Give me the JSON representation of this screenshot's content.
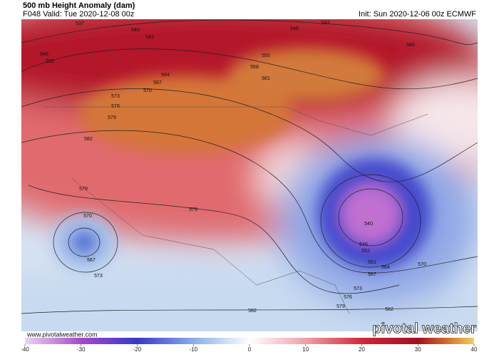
{
  "header": {
    "title": "500 mb Height Anomaly (dam)",
    "valid": "F048 Valid: Tue 2020-12-08 00z",
    "init": "Init: Sun 2020-12-06 00z ECMWF"
  },
  "contour_labels": [
    "537",
    "540",
    "543",
    "546",
    "549",
    "552",
    "555",
    "558",
    "561",
    "564",
    "567",
    "570",
    "573",
    "576",
    "579",
    "582",
    "543",
    "540",
    "579",
    "570",
    "567",
    "573",
    "579",
    "540",
    "546",
    "552",
    "561",
    "564",
    "567",
    "570",
    "573",
    "576",
    "579",
    "582",
    "582"
  ],
  "colorbar": {
    "range": [
      -40,
      40
    ],
    "ticks": [
      -40,
      -30,
      -20,
      -10,
      0,
      10,
      20,
      30,
      40
    ]
  },
  "footer": {
    "url": "www.pivotalweather.com",
    "logo": "pivotal weather"
  }
}
